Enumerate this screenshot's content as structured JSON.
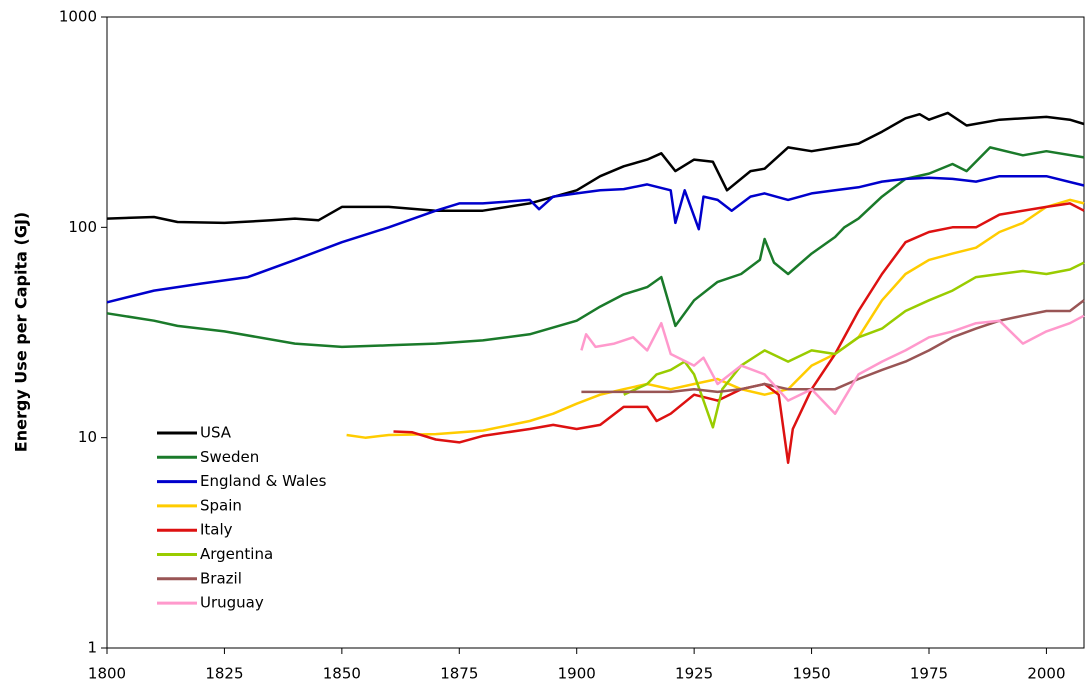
{
  "chart_data": {
    "type": "line",
    "y_label": "Energy Use per Capita (GJ)",
    "ylog": true,
    "grid": false,
    "legend": "lower left",
    "xlim": [
      1800,
      2008
    ],
    "xticks": [
      1800,
      1825,
      1850,
      1875,
      1900,
      1925,
      1950,
      1975,
      2000
    ],
    "ylim": [
      1,
      1000
    ],
    "yticks": [
      1,
      10,
      100,
      1000
    ],
    "series": [
      {
        "name": "USA",
        "color": "#000000",
        "x": [
          1800,
          1810,
          1815,
          1825,
          1835,
          1840,
          1845,
          1850,
          1860,
          1870,
          1880,
          1890,
          1900,
          1905,
          1910,
          1915,
          1918,
          1921,
          1925,
          1929,
          1932,
          1937,
          1940,
          1945,
          1950,
          1955,
          1960,
          1965,
          1970,
          1973,
          1975,
          1979,
          1983,
          1990,
          2000,
          2005,
          2008
        ],
        "values": [
          110,
          112,
          106,
          105,
          108,
          110,
          108,
          125,
          125,
          120,
          120,
          130,
          150,
          175,
          195,
          210,
          225,
          185,
          210,
          205,
          150,
          185,
          190,
          240,
          230,
          240,
          250,
          285,
          330,
          345,
          325,
          350,
          305,
          325,
          335,
          325,
          310
        ]
      },
      {
        "name": "Sweden",
        "color": "#1a7a2a",
        "x": [
          1800,
          1810,
          1815,
          1825,
          1840,
          1850,
          1860,
          1870,
          1880,
          1890,
          1900,
          1905,
          1910,
          1915,
          1918,
          1921,
          1925,
          1930,
          1935,
          1939,
          1940,
          1942,
          1945,
          1950,
          1955,
          1957,
          1960,
          1965,
          1970,
          1975,
          1980,
          1983,
          1988,
          1995,
          2000,
          2008
        ],
        "values": [
          39,
          36,
          34,
          32,
          28,
          27,
          27.5,
          28,
          29,
          31,
          36,
          42,
          48,
          52,
          58,
          34,
          45,
          55,
          60,
          70,
          88,
          68,
          60,
          75,
          90,
          100,
          110,
          140,
          170,
          180,
          200,
          185,
          240,
          220,
          230,
          215
        ]
      },
      {
        "name": "England & Wales",
        "color": "#0000cc",
        "x": [
          1800,
          1810,
          1820,
          1830,
          1840,
          1850,
          1860,
          1870,
          1875,
          1880,
          1890,
          1892,
          1895,
          1900,
          1905,
          1910,
          1915,
          1920,
          1921,
          1923,
          1926,
          1927,
          1930,
          1933,
          1937,
          1940,
          1945,
          1950,
          1955,
          1960,
          1965,
          1970,
          1975,
          1980,
          1985,
          1990,
          2000,
          2008
        ],
        "values": [
          44,
          50,
          54,
          58,
          70,
          85,
          100,
          120,
          130,
          130,
          135,
          122,
          140,
          145,
          150,
          152,
          160,
          150,
          105,
          150,
          98,
          140,
          135,
          120,
          140,
          145,
          135,
          145,
          150,
          155,
          165,
          170,
          172,
          170,
          165,
          175,
          175,
          158
        ]
      },
      {
        "name": "Spain",
        "color": "#ffcc00",
        "x": [
          1851,
          1855,
          1860,
          1870,
          1880,
          1890,
          1895,
          1900,
          1905,
          1910,
          1915,
          1920,
          1925,
          1930,
          1935,
          1940,
          1945,
          1950,
          1955,
          1960,
          1965,
          1970,
          1975,
          1980,
          1985,
          1990,
          1995,
          2000,
          2005,
          2008
        ],
        "values": [
          10.3,
          10,
          10.3,
          10.4,
          10.8,
          12,
          13,
          14.5,
          16,
          17,
          18,
          17,
          18,
          19,
          17,
          16,
          17,
          22,
          25,
          30,
          45,
          60,
          70,
          75,
          80,
          95,
          105,
          125,
          135,
          130
        ]
      },
      {
        "name": "Italy",
        "color": "#dd1111",
        "x": [
          1861,
          1865,
          1870,
          1875,
          1880,
          1890,
          1895,
          1900,
          1905,
          1910,
          1915,
          1917,
          1920,
          1925,
          1930,
          1935,
          1940,
          1943,
          1945,
          1946,
          1950,
          1955,
          1960,
          1965,
          1970,
          1975,
          1980,
          1985,
          1990,
          2000,
          2005,
          2008
        ],
        "values": [
          10.7,
          10.6,
          9.8,
          9.5,
          10.2,
          11,
          11.5,
          11,
          11.5,
          14,
          14,
          12,
          13,
          16,
          15,
          17,
          18,
          16,
          7.6,
          11,
          17,
          25,
          40,
          60,
          85,
          95,
          100,
          100,
          115,
          125,
          130,
          120
        ]
      },
      {
        "name": "Argentina",
        "color": "#99cc00",
        "x": [
          1910,
          1915,
          1917,
          1920,
          1923,
          1925,
          1927,
          1929,
          1931,
          1935,
          1940,
          1945,
          1950,
          1955,
          1960,
          1965,
          1970,
          1975,
          1980,
          1985,
          1990,
          1995,
          2000,
          2005,
          2008
        ],
        "values": [
          16,
          18,
          20,
          21,
          23,
          20,
          15,
          11.2,
          17,
          22,
          26,
          23,
          26,
          25,
          30,
          33,
          40,
          45,
          50,
          58,
          60,
          62,
          60,
          63,
          68
        ]
      },
      {
        "name": "Brazil",
        "color": "#995555",
        "x": [
          1901,
          1910,
          1920,
          1925,
          1930,
          1935,
          1940,
          1945,
          1950,
          1955,
          1960,
          1965,
          1970,
          1975,
          1980,
          1985,
          1990,
          1995,
          2000,
          2005,
          2008
        ],
        "values": [
          16.5,
          16.5,
          16.5,
          17,
          16.5,
          17,
          18,
          17,
          17,
          17,
          19,
          21,
          23,
          26,
          30,
          33,
          36,
          38,
          40,
          40,
          45
        ]
      },
      {
        "name": "Uruguay",
        "color": "#ff99cc",
        "x": [
          1901,
          1902,
          1904,
          1908,
          1912,
          1915,
          1918,
          1920,
          1925,
          1927,
          1930,
          1935,
          1940,
          1945,
          1950,
          1955,
          1960,
          1965,
          1970,
          1975,
          1980,
          1985,
          1990,
          1995,
          2000,
          2005,
          2008
        ],
        "values": [
          26,
          31,
          27,
          28,
          30,
          26,
          35,
          25,
          22,
          24,
          18,
          22,
          20,
          15,
          17,
          13,
          20,
          23,
          26,
          30,
          32,
          35,
          36,
          28,
          32,
          35,
          38
        ]
      }
    ]
  }
}
